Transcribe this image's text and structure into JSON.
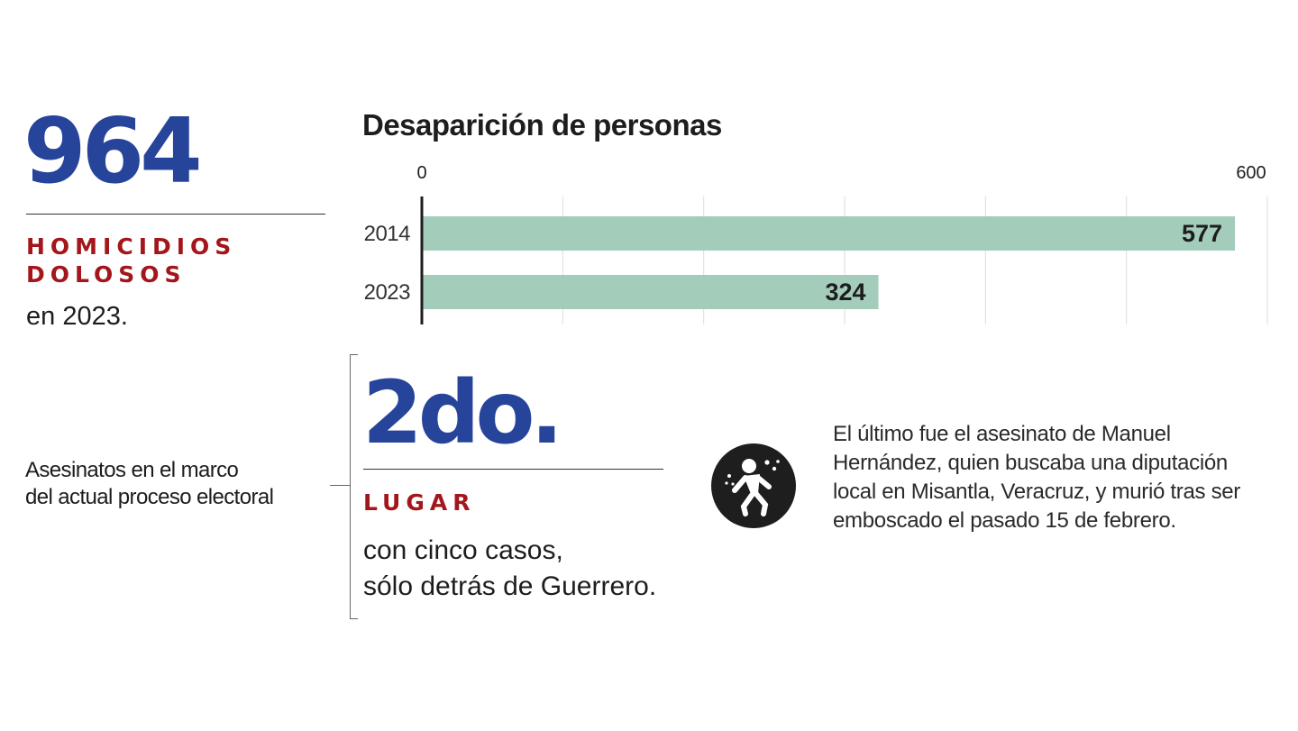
{
  "stat_homicidios": {
    "value": "964",
    "label_line1": "HOMICIDIOS",
    "label_line2": "DOLOSOS",
    "sub": "en 2023."
  },
  "chart_data": {
    "type": "bar",
    "orientation": "horizontal",
    "title": "Desaparición de personas",
    "categories": [
      "2014",
      "2023"
    ],
    "values": [
      577,
      324
    ],
    "value_labels": [
      "577",
      "324"
    ],
    "xlim": [
      0,
      600
    ],
    "tick_labels": [
      "0",
      "600"
    ],
    "grid": true,
    "bar_color": "#a3ccbb"
  },
  "electoral": {
    "caption_line1": "Asesinatos en el marco",
    "caption_line2": "del actual proceso electoral",
    "rank": "2do.",
    "rank_label": "LUGAR",
    "sub_line1": "con cinco casos,",
    "sub_line2": "sólo detrás de Guerrero.",
    "icon": "shooting-victim-icon",
    "paragraph_line1": "El último fue el asesinato de Manuel",
    "paragraph_line2": "Hernández, quien buscaba una diputación",
    "paragraph_line3": "local en Misantla, Veracruz, y murió tras ser",
    "paragraph_line4": "emboscado el pasado 15 de febrero."
  },
  "colors": {
    "accent_blue": "#27449b",
    "accent_red": "#a3161b",
    "bar_green": "#a3ccbb"
  }
}
